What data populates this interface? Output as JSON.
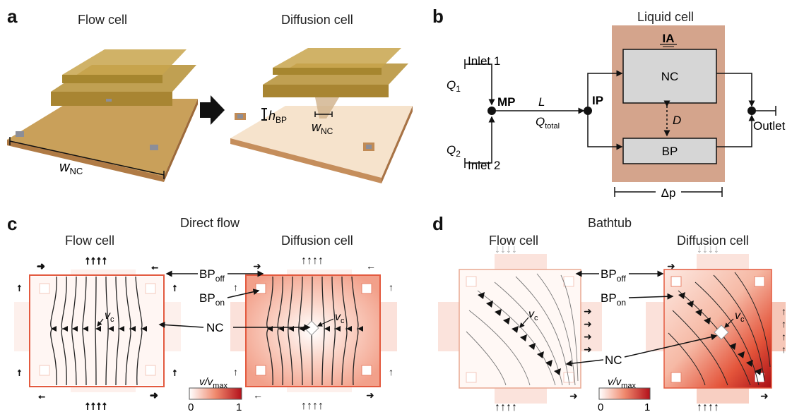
{
  "panels": {
    "a": {
      "letter": "a",
      "left_title": "Flow cell",
      "right_title": "Diffusion cell",
      "w_nc_main": "w",
      "w_nc_sub": "NC",
      "h_bp_main": "h",
      "h_bp_sub": "BP"
    },
    "b": {
      "letter": "b",
      "liquid_cell": "Liquid cell",
      "inlet1": "Inlet 1",
      "inlet2": "Inlet 2",
      "q1": "Q",
      "q1_sub": "1",
      "q2": "Q",
      "q2_sub": "2",
      "mp": "MP",
      "ip": "IP",
      "L": "L",
      "q_total": "Q",
      "q_total_sub": "total",
      "nc": "NC",
      "bp": "BP",
      "ia": "IA",
      "D": "D",
      "outlet": "Outlet",
      "delta_p": "Δp"
    },
    "c": {
      "letter": "c",
      "title": "Direct flow",
      "left_title": "Flow cell",
      "right_title": "Diffusion cell",
      "bp_off": "BP",
      "bp_off_sub": "off",
      "bp_on": "BP",
      "bp_on_sub": "on",
      "nc": "NC",
      "vc": "v",
      "vc_sub": "c",
      "cbar_label": "v/v",
      "cbar_sub": "max",
      "cbar_min": "0",
      "cbar_max": "1"
    },
    "d": {
      "letter": "d",
      "title": "Bathtub",
      "left_title": "Flow cell",
      "right_title": "Diffusion cell",
      "bp_off": "BP",
      "bp_off_sub": "off",
      "bp_on": "BP",
      "bp_on_sub": "on",
      "nc": "NC",
      "vc": "v",
      "vc_sub": "c",
      "cbar_label": "v/v",
      "cbar_sub": "max",
      "cbar_min": "0",
      "cbar_max": "1"
    }
  },
  "colors": {
    "gold": "#c9a64a",
    "gold_dark": "#8e7330",
    "base": "#d9a77a",
    "liquid_cell": "#d4a48c",
    "box_gray": "#d6d6d6",
    "flow_red": "#d7301f",
    "flow_pale": "#fbe3dc"
  }
}
